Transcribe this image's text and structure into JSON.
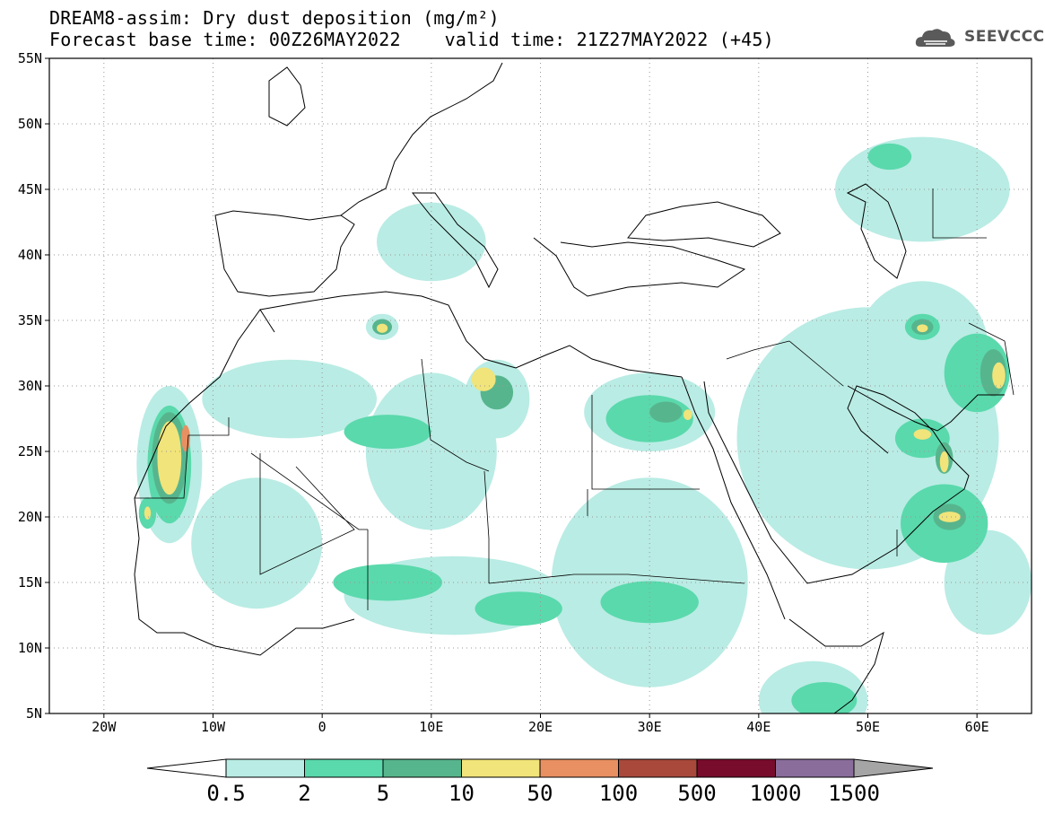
{
  "title": {
    "line1": "DREAM8-assim: Dry dust deposition (mg/m²)",
    "line2": "Forecast base time: 00Z26MAY2022    valid time: 21Z27MAY2022 (+45)"
  },
  "logo": {
    "text": "SEEVCCC",
    "icon": "cloud-icon"
  },
  "axes": {
    "lat_labels": [
      "55N",
      "50N",
      "45N",
      "40N",
      "35N",
      "30N",
      "25N",
      "20N",
      "15N",
      "10N",
      "5N"
    ],
    "lat_values": [
      55,
      50,
      45,
      40,
      35,
      30,
      25,
      20,
      15,
      10,
      5
    ],
    "lon_labels": [
      "20W",
      "10W",
      "0",
      "10E",
      "20E",
      "30E",
      "40E",
      "50E",
      "60E"
    ],
    "lon_values": [
      -20,
      -10,
      0,
      10,
      20,
      30,
      40,
      50,
      60
    ],
    "lon_range": [
      -25,
      65
    ],
    "lat_range": [
      5,
      55
    ],
    "grid": "dotted"
  },
  "colorbar": {
    "labels": [
      "0.5",
      "2",
      "5",
      "10",
      "50",
      "100",
      "500",
      "1000",
      "1500"
    ],
    "colors": [
      "#b9ece4",
      "#5ad9ac",
      "#57b58d",
      "#f1e47a",
      "#e89062",
      "#a8493c",
      "#780c2c",
      "#8a6d9b",
      "#a5a5a5"
    ]
  },
  "dust_patches": [
    {
      "level": 0,
      "lon": -14,
      "lat": 24,
      "rx": 3,
      "ry": 6
    },
    {
      "level": 1,
      "lon": -14,
      "lat": 24,
      "rx": 2,
      "ry": 4.5
    },
    {
      "level": 2,
      "lon": -14,
      "lat": 24.5,
      "rx": 1.6,
      "ry": 3.5
    },
    {
      "level": 3,
      "lon": -14,
      "lat": 24.5,
      "rx": 1.1,
      "ry": 2.8
    },
    {
      "level": 4,
      "lon": -12.5,
      "lat": 26,
      "rx": 0.4,
      "ry": 1.0
    },
    {
      "level": 1,
      "lon": -16,
      "lat": 20.3,
      "rx": 0.8,
      "ry": 1.2
    },
    {
      "level": 3,
      "lon": -16,
      "lat": 20.3,
      "rx": 0.3,
      "ry": 0.5
    },
    {
      "level": 0,
      "lon": -3,
      "lat": 29,
      "rx": 8,
      "ry": 3
    },
    {
      "level": 1,
      "lon": 6,
      "lat": 26.5,
      "rx": 4,
      "ry": 1.3
    },
    {
      "level": 0,
      "lon": 10,
      "lat": 25,
      "rx": 6,
      "ry": 6
    },
    {
      "level": 0,
      "lon": 5.5,
      "lat": 34.5,
      "rx": 1.5,
      "ry": 1.0
    },
    {
      "level": 2,
      "lon": 5.5,
      "lat": 34.5,
      "rx": 0.9,
      "ry": 0.6
    },
    {
      "level": 3,
      "lon": 5.5,
      "lat": 34.4,
      "rx": 0.5,
      "ry": 0.35
    },
    {
      "level": 0,
      "lon": 16,
      "lat": 29,
      "rx": 3,
      "ry": 3
    },
    {
      "level": 2,
      "lon": 16,
      "lat": 29.5,
      "rx": 1.5,
      "ry": 1.3
    },
    {
      "level": 3,
      "lon": 14.8,
      "lat": 30.5,
      "rx": 1.1,
      "ry": 0.9
    },
    {
      "level": 0,
      "lon": 30,
      "lat": 28,
      "rx": 6,
      "ry": 3
    },
    {
      "level": 1,
      "lon": 30,
      "lat": 27.5,
      "rx": 4,
      "ry": 1.8
    },
    {
      "level": 2,
      "lon": 31.5,
      "lat": 28,
      "rx": 1.5,
      "ry": 0.8
    },
    {
      "level": 3,
      "lon": 33.5,
      "lat": 27.8,
      "rx": 0.4,
      "ry": 0.4
    },
    {
      "level": 0,
      "lon": 30,
      "lat": 15,
      "rx": 9,
      "ry": 8
    },
    {
      "level": 0,
      "lon": 12,
      "lat": 14,
      "rx": 10,
      "ry": 3
    },
    {
      "level": 1,
      "lon": 6,
      "lat": 15,
      "rx": 5,
      "ry": 1.4
    },
    {
      "level": 0,
      "lon": -6,
      "lat": 18,
      "rx": 6,
      "ry": 5
    },
    {
      "level": 1,
      "lon": 18,
      "lat": 13,
      "rx": 4,
      "ry": 1.3
    },
    {
      "level": 1,
      "lon": 30,
      "lat": 13.5,
      "rx": 4.5,
      "ry": 1.6
    },
    {
      "level": 0,
      "lon": 50,
      "lat": 26,
      "rx": 12,
      "ry": 10
    },
    {
      "level": 0,
      "lon": 55,
      "lat": 33,
      "rx": 6,
      "ry": 5
    },
    {
      "level": 1,
      "lon": 55,
      "lat": 34.5,
      "rx": 1.6,
      "ry": 1.0
    },
    {
      "level": 2,
      "lon": 55,
      "lat": 34.5,
      "rx": 1.0,
      "ry": 0.6
    },
    {
      "level": 3,
      "lon": 55,
      "lat": 34.4,
      "rx": 0.5,
      "ry": 0.3
    },
    {
      "level": 1,
      "lon": 60,
      "lat": 31,
      "rx": 3,
      "ry": 3
    },
    {
      "level": 2,
      "lon": 61.5,
      "lat": 31,
      "rx": 1.2,
      "ry": 1.8
    },
    {
      "level": 3,
      "lon": 62,
      "lat": 30.8,
      "rx": 0.6,
      "ry": 1.0
    },
    {
      "level": 1,
      "lon": 55,
      "lat": 26,
      "rx": 2.5,
      "ry": 1.5
    },
    {
      "level": 3,
      "lon": 55,
      "lat": 26.3,
      "rx": 0.8,
      "ry": 0.4
    },
    {
      "level": 2,
      "lon": 57,
      "lat": 24.5,
      "rx": 0.8,
      "ry": 1.2
    },
    {
      "level": 3,
      "lon": 57,
      "lat": 24.2,
      "rx": 0.4,
      "ry": 0.8
    },
    {
      "level": 1,
      "lon": 57,
      "lat": 19.5,
      "rx": 4,
      "ry": 3
    },
    {
      "level": 2,
      "lon": 57.5,
      "lat": 20,
      "rx": 1.5,
      "ry": 1.0
    },
    {
      "level": 3,
      "lon": 57.5,
      "lat": 20,
      "rx": 1.0,
      "ry": 0.4
    },
    {
      "level": 0,
      "lon": 55,
      "lat": 45,
      "rx": 8,
      "ry": 4
    },
    {
      "level": 1,
      "lon": 52,
      "lat": 47.5,
      "rx": 2,
      "ry": 1
    },
    {
      "level": 0,
      "lon": 10,
      "lat": 41,
      "rx": 5,
      "ry": 3
    },
    {
      "level": 0,
      "lon": 45,
      "lat": 6,
      "rx": 5,
      "ry": 3
    },
    {
      "level": 1,
      "lon": 46,
      "lat": 6,
      "rx": 3,
      "ry": 1.4
    },
    {
      "level": 0,
      "lon": 61,
      "lat": 15,
      "rx": 4,
      "ry": 4
    }
  ]
}
